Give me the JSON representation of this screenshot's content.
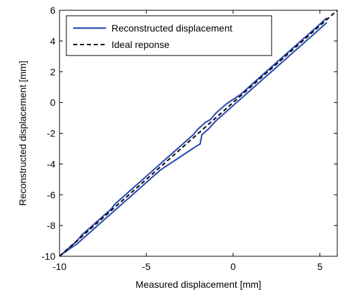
{
  "chart_data": {
    "type": "line",
    "xlabel": "Measured displacement [mm]",
    "ylabel": "Reconstructed displacement [mm]",
    "xlim": [
      -10,
      6
    ],
    "ylim": [
      -10,
      6
    ],
    "xticks": [
      -10,
      -5,
      0,
      5
    ],
    "yticks": [
      -10,
      -8,
      -6,
      -4,
      -2,
      0,
      2,
      4,
      6
    ],
    "grid": false,
    "legend_position": "top-left",
    "series": [
      {
        "name": "Reconstructed displacement",
        "style": "solid",
        "color": "#2f4fb5",
        "x": [
          -9.9,
          -9.5,
          -9.0,
          -8.7,
          -8.4,
          -8.0,
          -7.6,
          -7.2,
          -7.0,
          -6.8,
          -6.5,
          -6.2,
          -5.9,
          -5.6,
          -5.3,
          -5.0,
          -4.7,
          -4.4,
          -4.1,
          -3.8,
          -3.5,
          -3.2,
          -2.9,
          -2.6,
          -2.3,
          -2.0,
          -1.8,
          -1.6,
          -1.3,
          -1.0,
          -0.7,
          -0.4,
          0.0,
          0.4,
          0.8,
          1.2,
          1.6,
          2.0,
          2.4,
          2.8,
          3.2,
          3.6,
          4.0,
          4.4,
          4.8,
          5.2,
          5.4
        ],
        "y": [
          -9.9,
          -9.5,
          -9.0,
          -8.6,
          -8.3,
          -7.9,
          -7.5,
          -7.1,
          -6.9,
          -6.6,
          -6.3,
          -6.0,
          -5.7,
          -5.4,
          -5.1,
          -4.8,
          -4.5,
          -4.2,
          -3.9,
          -3.6,
          -3.3,
          -3.0,
          -2.7,
          -2.4,
          -2.1,
          -1.7,
          -1.5,
          -1.3,
          -1.1,
          -0.7,
          -0.4,
          -0.1,
          0.2,
          0.5,
          0.9,
          1.3,
          1.7,
          2.1,
          2.5,
          2.9,
          3.3,
          3.7,
          4.1,
          4.5,
          4.9,
          5.3,
          5.5
        ]
      },
      {
        "name": "Reconstructed displacement",
        "style": "solid",
        "color": "#2f4fb5",
        "x": [
          5.4,
          5.0,
          4.6,
          4.2,
          3.8,
          3.4,
          3.0,
          2.6,
          2.2,
          1.8,
          1.4,
          1.0,
          0.6,
          0.2,
          -0.2,
          -0.6,
          -1.0,
          -1.4,
          -1.8,
          -1.9,
          -2.2,
          -2.6,
          -3.0,
          -3.4,
          -3.8,
          -4.2,
          -4.6,
          -5.0,
          -5.4,
          -5.8,
          -6.2,
          -6.6,
          -7.0,
          -7.4,
          -7.8,
          -8.2,
          -8.6,
          -9.0,
          -9.4,
          -9.9
        ],
        "y": [
          5.2,
          4.8,
          4.4,
          4.0,
          3.6,
          3.2,
          2.8,
          2.4,
          2.0,
          1.6,
          1.2,
          0.8,
          0.4,
          0.0,
          -0.4,
          -0.8,
          -1.2,
          -1.7,
          -2.1,
          -2.7,
          -2.9,
          -3.2,
          -3.5,
          -3.8,
          -4.1,
          -4.4,
          -4.8,
          -5.2,
          -5.6,
          -6.0,
          -6.4,
          -6.8,
          -7.2,
          -7.6,
          -8.0,
          -8.4,
          -8.8,
          -9.2,
          -9.5,
          -9.9
        ]
      },
      {
        "name": "Ideal reponse",
        "style": "dashed",
        "color": "#000000",
        "x": [
          -10,
          6
        ],
        "y": [
          -10,
          6
        ]
      }
    ],
    "legend": [
      {
        "label": "Reconstructed displacement",
        "style": "solid",
        "color": "#2f4fb5"
      },
      {
        "label": "Ideal reponse",
        "style": "dashed",
        "color": "#000000"
      }
    ]
  }
}
